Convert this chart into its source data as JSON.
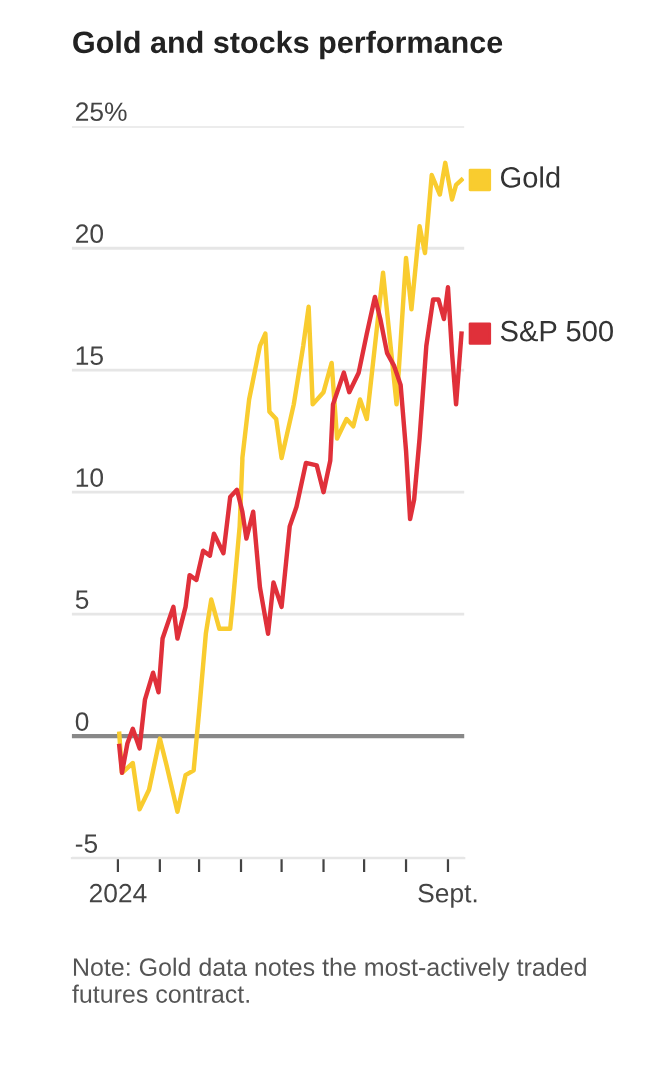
{
  "chart_data": {
    "type": "line",
    "title": "Gold and stocks performance",
    "x": [
      "2024-01-02",
      "2024-01-04",
      "2024-01-12",
      "2024-01-17",
      "2024-01-24",
      "2024-02-01",
      "2024-02-06",
      "2024-02-14",
      "2024-02-20",
      "2024-02-26",
      "2024-03-01",
      "2024-03-06",
      "2024-03-10",
      "2024-03-16",
      "2024-03-24",
      "2024-03-26",
      "2024-03-31",
      "2024-04-02",
      "2024-04-02",
      "2024-04-07",
      "2024-04-15",
      "2024-04-19",
      "2024-04-22",
      "2024-04-27",
      "2024-05-01",
      "2024-05-10",
      "2024-05-17",
      "2024-05-21",
      "2024-05-24",
      "2024-06-01",
      "2024-06-07",
      "2024-06-11",
      "2024-06-18",
      "2024-06-23",
      "2024-06-28",
      "2024-07-03",
      "2024-07-10",
      "2024-07-15",
      "2024-07-20",
      "2024-07-25",
      "2024-08-01",
      "2024-08-05",
      "2024-08-11",
      "2024-08-15",
      "2024-08-20",
      "2024-08-26",
      "2024-08-30",
      "2024-09-04",
      "2024-09-07",
      "2024-09-11"
    ],
    "series": [
      {
        "name": "Gold",
        "color": "#f9cc2f",
        "values": [
          0.1,
          -1.5,
          -1.1,
          -3.0,
          -2.2,
          -0.1,
          -1.2,
          -3.1,
          -1.6,
          -1.4,
          1.0,
          4.2,
          5.6,
          4.4,
          4.4,
          5.5,
          8.6,
          11.3,
          11.4,
          13.8,
          16.0,
          16.5,
          13.3,
          13.0,
          11.4,
          13.6,
          16.0,
          17.6,
          13.6,
          14.1,
          15.3,
          12.2,
          13.0,
          12.7,
          13.8,
          13.0,
          16.5,
          19.0,
          16.3,
          13.6,
          19.6,
          17.5,
          20.9,
          19.8,
          23.0,
          22.2,
          23.5,
          22.0,
          22.6,
          22.8
        ]
      },
      {
        "name": "S&P 500",
        "color": "#e0303a",
        "x": [
          "2024-01-02",
          "2024-01-04",
          "2024-01-08",
          "2024-01-12",
          "2024-01-17",
          "2024-01-21",
          "2024-01-27",
          "2024-01-31",
          "2024-02-03",
          "2024-02-11",
          "2024-02-14",
          "2024-02-20",
          "2024-02-23",
          "2024-02-28",
          "2024-03-04",
          "2024-03-09",
          "2024-03-12",
          "2024-03-19",
          "2024-03-24",
          "2024-03-29",
          "2024-04-02",
          "2024-04-05",
          "2024-04-10",
          "2024-04-15",
          "2024-04-21",
          "2024-04-25",
          "2024-05-01",
          "2024-05-07",
          "2024-05-12",
          "2024-05-19",
          "2024-05-27",
          "2024-06-01",
          "2024-06-06",
          "2024-06-08",
          "2024-06-16",
          "2024-06-20",
          "2024-06-27",
          "2024-07-03",
          "2024-07-09",
          "2024-07-13",
          "2024-07-18",
          "2024-07-23",
          "2024-07-28",
          "2024-08-01",
          "2024-08-04",
          "2024-08-07",
          "2024-08-11",
          "2024-08-16",
          "2024-08-21",
          "2024-08-25",
          "2024-08-29",
          "2024-09-01",
          "2024-09-04",
          "2024-09-07",
          "2024-09-11"
        ],
        "values": [
          -0.4,
          -1.5,
          -0.3,
          0.3,
          -0.5,
          1.5,
          2.6,
          1.8,
          4.0,
          5.3,
          4.0,
          5.3,
          6.6,
          6.4,
          7.6,
          7.4,
          8.3,
          7.5,
          9.8,
          10.1,
          9.2,
          8.1,
          9.2,
          6.1,
          4.2,
          6.3,
          5.3,
          8.6,
          9.4,
          11.2,
          11.1,
          10.0,
          11.3,
          13.6,
          14.9,
          14.1,
          14.9,
          16.5,
          18.0,
          17.1,
          15.7,
          15.2,
          14.4,
          11.7,
          8.9,
          9.7,
          12.2,
          16.0,
          17.9,
          17.9,
          17.1,
          18.4,
          15.7,
          13.6,
          16.5
        ]
      }
    ],
    "xlim": [
      "2023-11-28",
      "2024-09-13"
    ],
    "xticks": [
      {
        "value": "2024-01-01",
        "label": "2024"
      },
      {
        "value": "2024-02-01",
        "label": null
      },
      {
        "value": "2024-03-01",
        "label": null
      },
      {
        "value": "2024-04-01",
        "label": null
      },
      {
        "value": "2024-05-01",
        "label": null
      },
      {
        "value": "2024-06-01",
        "label": null
      },
      {
        "value": "2024-07-01",
        "label": null
      },
      {
        "value": "2024-08-01",
        "label": null
      },
      {
        "value": "2024-09-01",
        "label": "Sept."
      }
    ],
    "ylim": [
      -5,
      25
    ],
    "yticks": [
      -5,
      0,
      5,
      10,
      15,
      20,
      {
        "value": 25,
        "label": "25%"
      }
    ],
    "grid": "y",
    "legend": "right",
    "ref_lines": [
      {
        "axis": "y",
        "value": 0,
        "color": "#888888"
      }
    ],
    "annotations": [
      "Note: Gold data notes the most-actively traded futures contract."
    ]
  }
}
